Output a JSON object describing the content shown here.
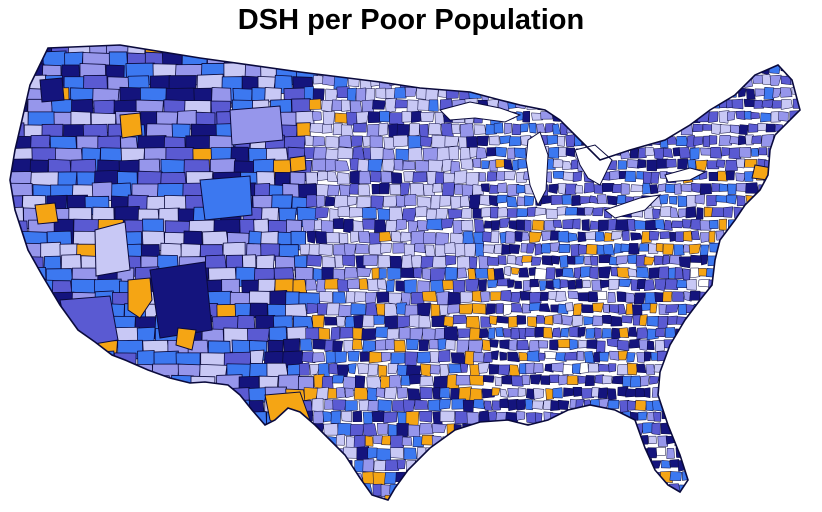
{
  "title": "DSH per Poor Population",
  "map": {
    "region": "contiguous United States",
    "unit": "county",
    "border_color": "#0a0a3c",
    "legend_shown": false,
    "palette": {
      "very_light": "#c8c8f5",
      "light": "#9696eb",
      "medium_purple": "#5a5ad2",
      "bright_blue": "#3c78f0",
      "dark_navy": "#14147d",
      "orange": "#f5a514",
      "white": "#ffffff"
    }
  }
}
